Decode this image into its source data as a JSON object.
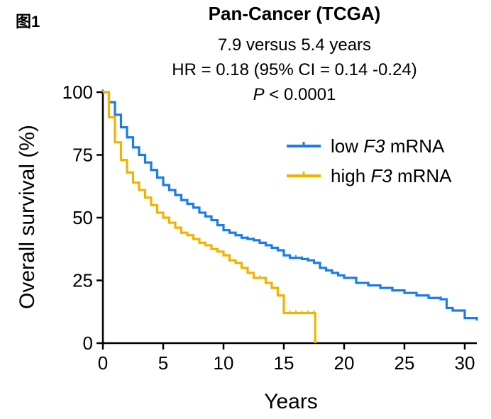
{
  "figure_label": "图1",
  "chart_data": {
    "type": "line",
    "subtype": "kaplan-meier",
    "title": "Pan-Cancer (TCGA)",
    "subtitle_lines": [
      {
        "prefix": "",
        "text": "7.9 versus 5.4 years"
      },
      {
        "prefix": "",
        "text": "HR = 0.18 (95% CI = 0.14 -0.24)"
      },
      {
        "prefix": "P",
        "text": " < 0.0001"
      }
    ],
    "xlabel": "Years",
    "ylabel": "Overall survival (%)",
    "xlim": [
      0,
      31
    ],
    "ylim": [
      0,
      100
    ],
    "xticks": [
      0,
      5,
      10,
      15,
      20,
      25,
      30
    ],
    "yticks": [
      0,
      25,
      50,
      75,
      100
    ],
    "grid": false,
    "legend_position": "top-right",
    "series": [
      {
        "name_prefix": "low ",
        "name_gene": "F3",
        "name_suffix": " mRNA",
        "color": "#1a7ce6",
        "x": [
          0,
          0.5,
          1,
          1.5,
          2,
          2.5,
          3,
          3.5,
          4,
          4.5,
          5,
          5.5,
          6,
          6.5,
          7,
          7.5,
          8,
          8.5,
          9,
          9.5,
          10,
          10.5,
          11,
          11.5,
          12,
          12.5,
          13,
          13.5,
          14,
          14.5,
          15,
          15.5,
          16,
          16.5,
          17,
          17.5,
          18,
          18.5,
          19,
          19.5,
          20,
          21,
          22,
          23,
          24,
          25,
          26,
          27,
          28,
          28.5,
          29,
          30,
          31
        ],
        "y": [
          100,
          96,
          91,
          86,
          82,
          78,
          75,
          72,
          69,
          66,
          63,
          61,
          59,
          57,
          55.5,
          54,
          52,
          50.5,
          49,
          47,
          45,
          44,
          43,
          42,
          41.5,
          41,
          40,
          39,
          38,
          37,
          35,
          34,
          34,
          33.5,
          33,
          32,
          30,
          29,
          28,
          27,
          26,
          24,
          23,
          22,
          21,
          20,
          19,
          18,
          17.5,
          14,
          13,
          10,
          9
        ]
      },
      {
        "name_prefix": "high ",
        "name_gene": "F3",
        "name_suffix": " mRNA",
        "color": "#f2b200",
        "x": [
          0,
          0.5,
          1,
          1.5,
          2,
          2.5,
          3,
          3.5,
          4,
          4.5,
          5,
          5.5,
          6,
          6.5,
          7,
          7.5,
          8,
          8.5,
          9,
          9.5,
          10,
          10.5,
          11,
          11.5,
          12,
          12.5,
          13,
          13.5,
          14,
          14.5,
          15,
          15.5,
          16,
          16.5,
          17,
          17.5,
          17.6
        ],
        "y": [
          100,
          90,
          80,
          73,
          68,
          64,
          61,
          58,
          55,
          52,
          50,
          48,
          46,
          44,
          43,
          41.5,
          40,
          39,
          37.5,
          36.5,
          35,
          33,
          32,
          30,
          28,
          26,
          26,
          24,
          22,
          19,
          12,
          12,
          12,
          12,
          12,
          12,
          0
        ]
      }
    ]
  }
}
